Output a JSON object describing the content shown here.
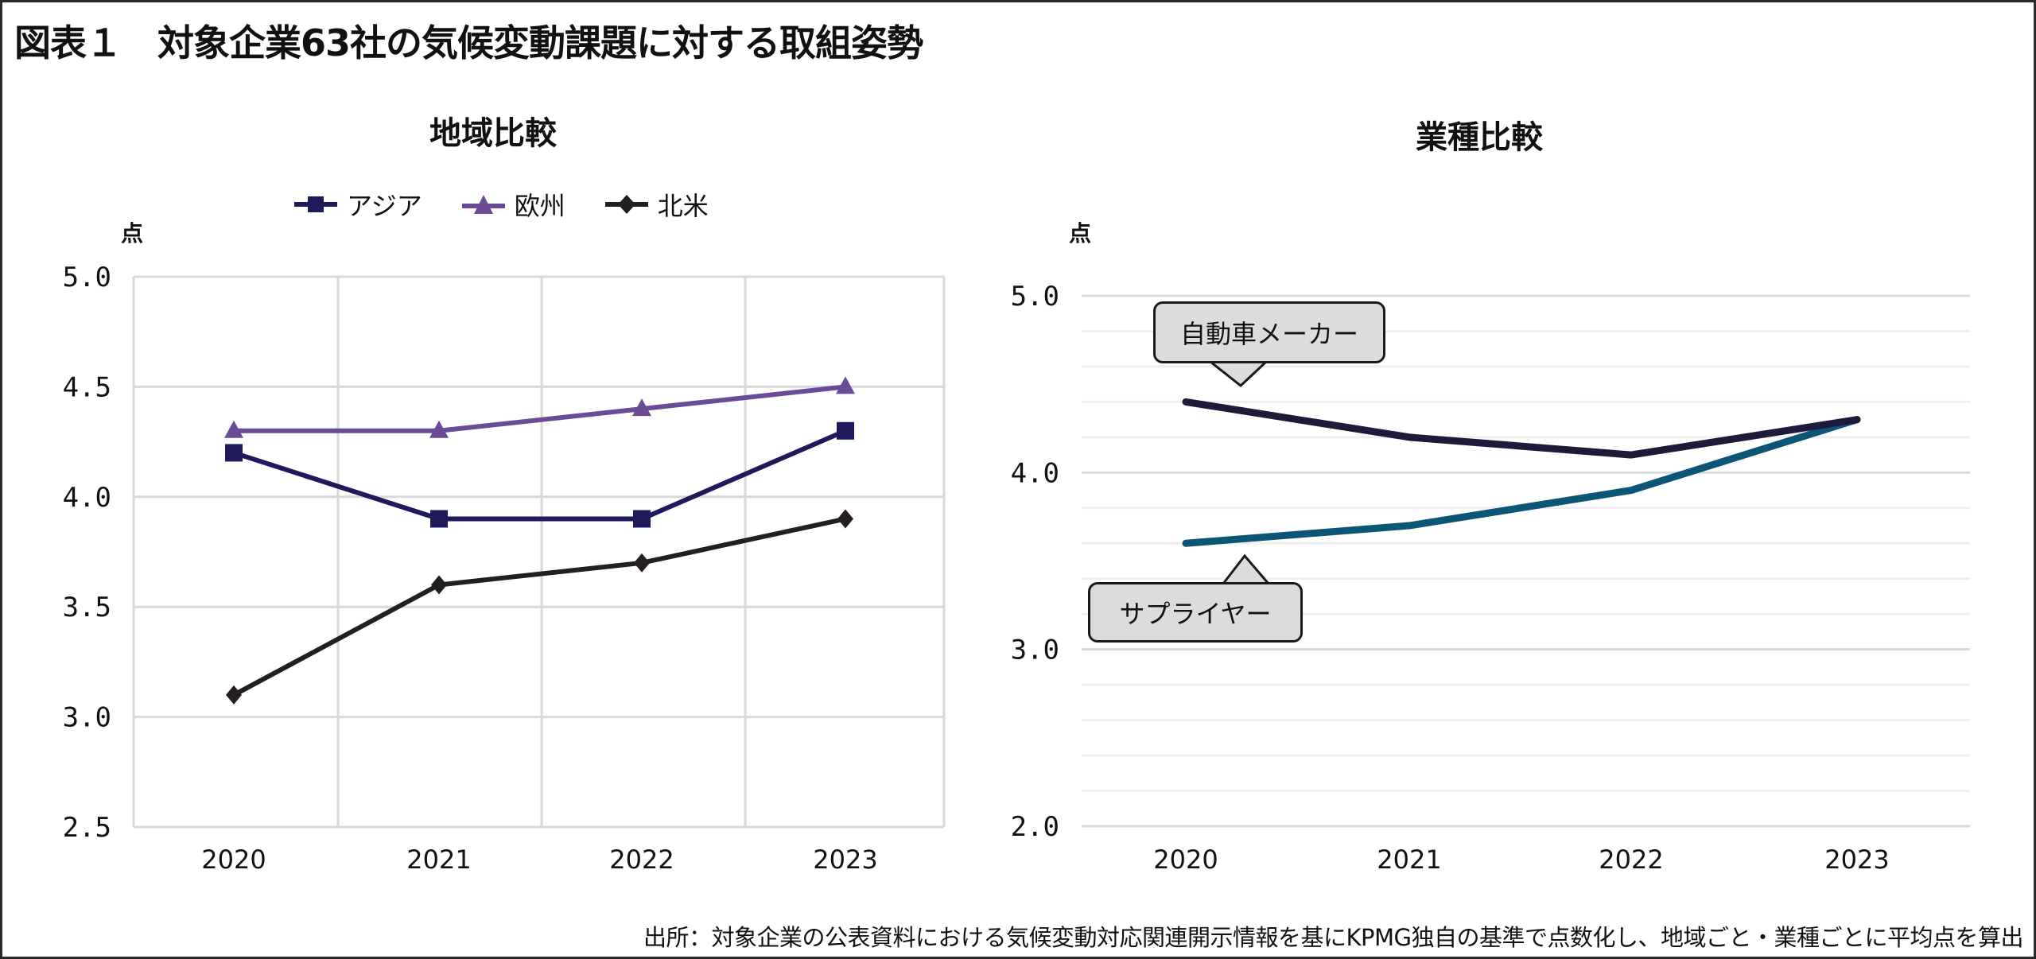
{
  "title": "図表１　対象企業63社の気候変動課題に対する取組姿勢",
  "footer": "出所：対象企業の公表資料における気候変動対応関連開示情報を基にKPMG独自の基準で点数化し、地域ごと・業種ごとに平均点を算出",
  "chart_data": [
    {
      "type": "line",
      "title": "地域比較",
      "ylabel": "点",
      "categories": [
        "2020",
        "2021",
        "2022",
        "2023"
      ],
      "ylim": [
        2.5,
        5.0
      ],
      "yticks": [
        "5.0",
        "4.5",
        "4.0",
        "3.5",
        "3.0",
        "2.5"
      ],
      "grid": true,
      "legend_position": "top",
      "series": [
        {
          "name": "アジア",
          "values": [
            4.2,
            3.9,
            3.9,
            4.3
          ],
          "color": "#1f1a5c",
          "marker": "square"
        },
        {
          "name": "欧州",
          "values": [
            4.3,
            4.3,
            4.4,
            4.5
          ],
          "color": "#6b4a96",
          "marker": "triangle"
        },
        {
          "name": "北米",
          "values": [
            3.1,
            3.6,
            3.7,
            3.9
          ],
          "color": "#231f20",
          "marker": "diamond"
        }
      ]
    },
    {
      "type": "line",
      "title": "業種比較",
      "ylabel": "点",
      "categories": [
        "2020",
        "2021",
        "2022",
        "2023"
      ],
      "ylim": [
        2.0,
        5.0
      ],
      "yticks": [
        "5.0",
        "4.0",
        "3.0",
        "2.0"
      ],
      "grid": true,
      "series": [
        {
          "name": "自動車メーカー",
          "values": [
            4.4,
            4.2,
            4.1,
            4.3
          ],
          "color": "#1e1a3c"
        },
        {
          "name": "サプライヤー",
          "values": [
            3.6,
            3.7,
            3.9,
            4.3
          ],
          "color": "#0b5577"
        }
      ]
    }
  ]
}
